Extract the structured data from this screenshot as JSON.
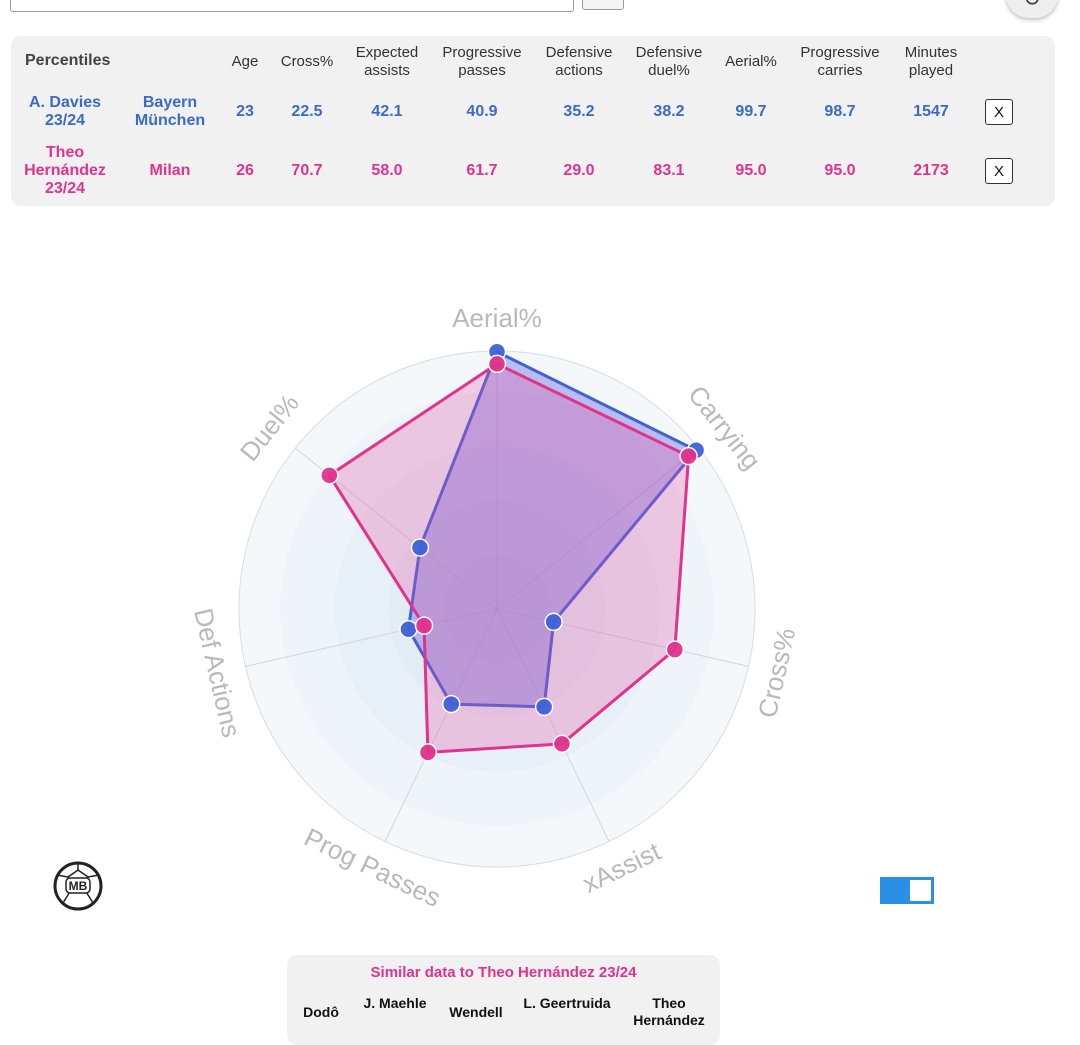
{
  "table": {
    "title": "Percentiles",
    "headers": [
      "Age",
      "Cross%",
      "Expected assists",
      "Progressive passes",
      "Defensive actions",
      "Defensive duel%",
      "Aerial%",
      "Progressive carries",
      "Minutes played"
    ],
    "rows": [
      {
        "player": "A. Davies 23/24",
        "team": "Bayern München",
        "values": [
          "23",
          "22.5",
          "42.1",
          "40.9",
          "35.2",
          "38.2",
          "99.7",
          "98.7",
          "1547"
        ],
        "remove_label": "X",
        "color": "#3b6bc6"
      },
      {
        "player": "Theo Hernández 23/24",
        "team": "Milan",
        "values": [
          "26",
          "70.7",
          "58.0",
          "61.7",
          "29.0",
          "83.1",
          "95.0",
          "95.0",
          "2173"
        ],
        "remove_label": "X",
        "color": "#e0338c"
      }
    ]
  },
  "chart_data": {
    "type": "radar",
    "axes": [
      "Aerial%",
      "Carrying",
      "Cross%",
      "xAssist",
      "Prog Passes",
      "Def Actions",
      "Duel%"
    ],
    "range": [
      0,
      100
    ],
    "series": [
      {
        "name": "A. Davies 23/24",
        "color": "#3f62d9",
        "values": [
          99.7,
          98.7,
          22.5,
          42.1,
          40.9,
          35.2,
          38.2
        ]
      },
      {
        "name": "Theo Hernández 23/24",
        "color": "#e0338c",
        "values": [
          95.0,
          95.0,
          70.7,
          58.0,
          61.7,
          29.0,
          83.1
        ]
      }
    ]
  },
  "logo_text": "MB",
  "similar": {
    "title": "Similar data to Theo Hernández 23/24",
    "players": [
      "Dodô",
      "J. Maehle",
      "Wendell",
      "L. Geertruida",
      "Theo Hernández"
    ]
  }
}
